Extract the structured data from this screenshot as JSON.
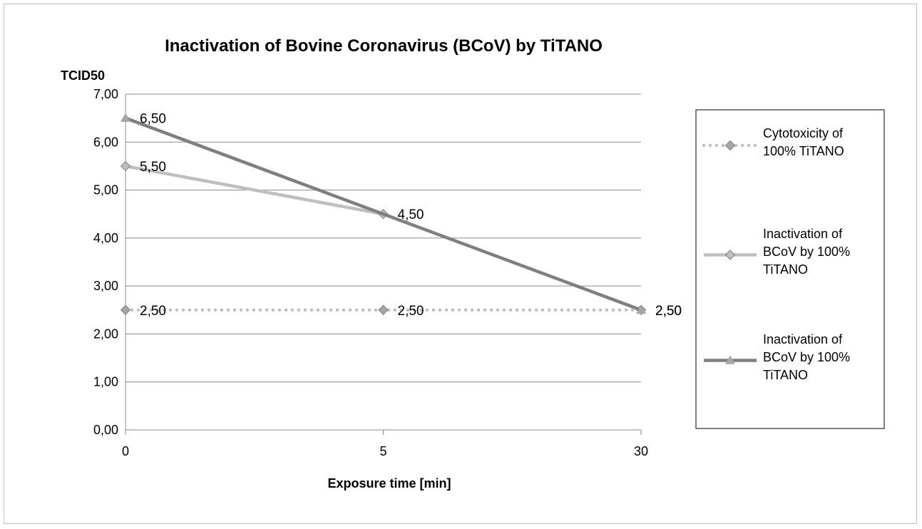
{
  "chart_data": {
    "type": "line",
    "title": "Inactivation of  Bovine Coronavirus (BCoV) by TiTANO",
    "ylabel": "TCID50",
    "xlabel": "Exposure time [min]",
    "categories": [
      "0",
      "5",
      "30"
    ],
    "ylim": [
      0,
      7
    ],
    "yticks": [
      "0,00",
      "1,00",
      "2,00",
      "3,00",
      "4,00",
      "5,00",
      "6,00",
      "7,00"
    ],
    "grid": true,
    "legend_position": "right",
    "series": [
      {
        "name": "Cytotoxicity of 100% TiTANO",
        "legend_lines": [
          "Cytotoxicity of",
          "100% TiTANO"
        ],
        "values": [
          2.5,
          2.5,
          2.5
        ],
        "labels": [
          "2,50",
          "2,50",
          "2,50"
        ],
        "color": "#bfbfbf",
        "marker_color": "#a6a6a6",
        "marker": "diamond",
        "line_style": "dotted"
      },
      {
        "name": "Inactivation of BCoV by 100% TiTANO",
        "legend_lines": [
          "Inactivation of",
          "BCoV by 100%",
          "TiTANO"
        ],
        "values": [
          5.5,
          4.5,
          null
        ],
        "labels": [
          "5,50",
          "4,50",
          null
        ],
        "color": "#bfbfbf",
        "marker_color": "#bfbfbf",
        "marker": "diamond",
        "line_style": "solid"
      },
      {
        "name": "Inactivation of BCoV by 100% TiTANO",
        "legend_lines": [
          "Inactivation of",
          "BCoV by 100%",
          "TiTANO"
        ],
        "values": [
          6.5,
          null,
          2.5
        ],
        "labels": [
          "6,50",
          null,
          "2,50"
        ],
        "color": "#7f7f7f",
        "marker_color": "#a6a6a6",
        "marker": "triangle",
        "line_style": "solid"
      }
    ]
  }
}
